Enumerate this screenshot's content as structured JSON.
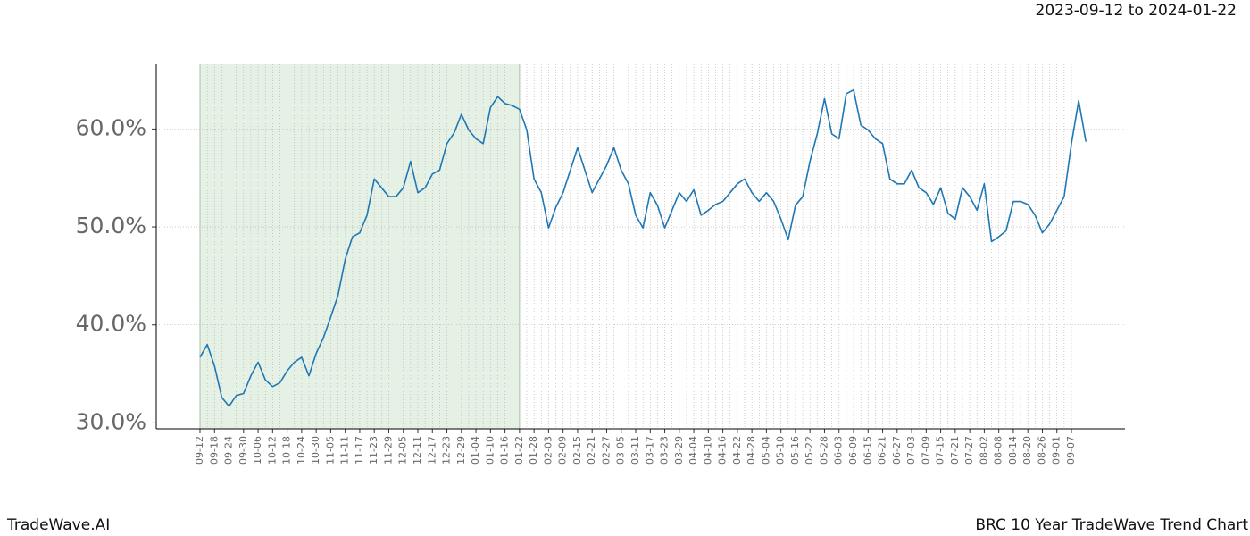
{
  "chart_data": {
    "type": "line",
    "title": "BRC 10 Year TradeWave Trend Chart",
    "date_range": "2023-09-12 to 2024-01-22",
    "source": "TradeWave.AI",
    "categories": [
      "09-12",
      null,
      "09-18",
      null,
      "09-24",
      null,
      "09-30",
      null,
      "10-06",
      null,
      "10-12",
      null,
      "10-18",
      null,
      "10-24",
      null,
      "10-30",
      null,
      "11-05",
      null,
      "11-11",
      null,
      "11-17",
      null,
      "11-23",
      null,
      "11-29",
      null,
      "12-05",
      null,
      "12-11",
      null,
      "12-17",
      null,
      "12-23",
      null,
      "12-29",
      null,
      "01-04",
      null,
      "01-10",
      null,
      "01-16",
      null,
      "01-22",
      null,
      "01-28",
      null,
      "02-03",
      null,
      "02-09",
      null,
      "02-15",
      null,
      "02-21",
      null,
      "02-27",
      null,
      "03-05",
      null,
      "03-11",
      null,
      "03-17",
      null,
      "03-23",
      null,
      "03-29",
      null,
      "04-04",
      null,
      "04-10",
      null,
      "04-16",
      null,
      "04-22",
      null,
      "04-28",
      null,
      "05-04",
      null,
      "05-10",
      null,
      "05-16",
      null,
      "05-22",
      null,
      "05-28",
      null,
      "06-03",
      null,
      "06-09",
      null,
      "06-15",
      null,
      "06-21",
      null,
      "06-27",
      null,
      "07-03",
      null,
      "07-09",
      null,
      "07-15",
      null,
      "07-21",
      null,
      "07-27",
      null,
      "08-02",
      null,
      "08-08",
      null,
      "08-14",
      null,
      "08-20",
      null,
      "08-26",
      null,
      "09-01",
      null,
      "09-07",
      null,
      null
    ],
    "series": [
      {
        "name": "BRC",
        "color": "#1f77b4",
        "values": [
          36.7,
          38.0,
          35.8,
          32.6,
          31.7,
          32.8,
          33.0,
          34.8,
          36.2,
          34.4,
          33.7,
          34.1,
          35.3,
          36.2,
          36.7,
          34.8,
          37.1,
          38.7,
          40.8,
          43.0,
          46.7,
          49.0,
          49.4,
          51.2,
          54.9,
          54.0,
          53.1,
          53.1,
          54.0,
          56.7,
          53.5,
          54.0,
          55.4,
          55.8,
          58.5,
          59.6,
          61.5,
          59.9,
          59.0,
          58.5,
          62.2,
          63.3,
          62.6,
          62.4,
          62.0,
          59.9,
          54.9,
          53.5,
          49.9,
          52.0,
          53.5,
          55.8,
          58.1,
          55.8,
          53.5,
          54.9,
          56.3,
          58.1,
          55.8,
          54.4,
          51.2,
          49.9,
          53.5,
          52.2,
          49.9,
          51.7,
          53.5,
          52.6,
          53.8,
          51.2,
          51.7,
          52.3,
          52.6,
          53.5,
          54.4,
          54.9,
          53.5,
          52.6,
          53.5,
          52.6,
          50.8,
          48.7,
          52.2,
          53.1,
          56.7,
          59.5,
          63.1,
          59.5,
          59.0,
          63.6,
          64.0,
          60.4,
          59.9,
          59.0,
          58.5,
          54.9,
          54.4,
          54.4,
          55.8,
          54.0,
          53.5,
          52.3,
          54.0,
          51.4,
          50.8,
          54.0,
          53.1,
          51.7,
          54.4,
          48.5,
          49.0,
          49.6,
          52.6,
          52.6,
          52.3,
          51.2,
          49.4,
          50.3,
          51.7,
          53.1,
          58.5,
          62.9,
          58.7
        ]
      }
    ],
    "ylim": [
      29.4,
      66.6
    ],
    "yticks": [
      {
        "value": 30,
        "label": "30.0%"
      },
      {
        "value": 40,
        "label": "40.0%"
      },
      {
        "value": 50,
        "label": "50.0%"
      },
      {
        "value": 60,
        "label": "60.0%"
      }
    ],
    "grid": true,
    "highlight": {
      "from": "09-12",
      "to": "01-22",
      "color": "#e6f1e6"
    }
  }
}
